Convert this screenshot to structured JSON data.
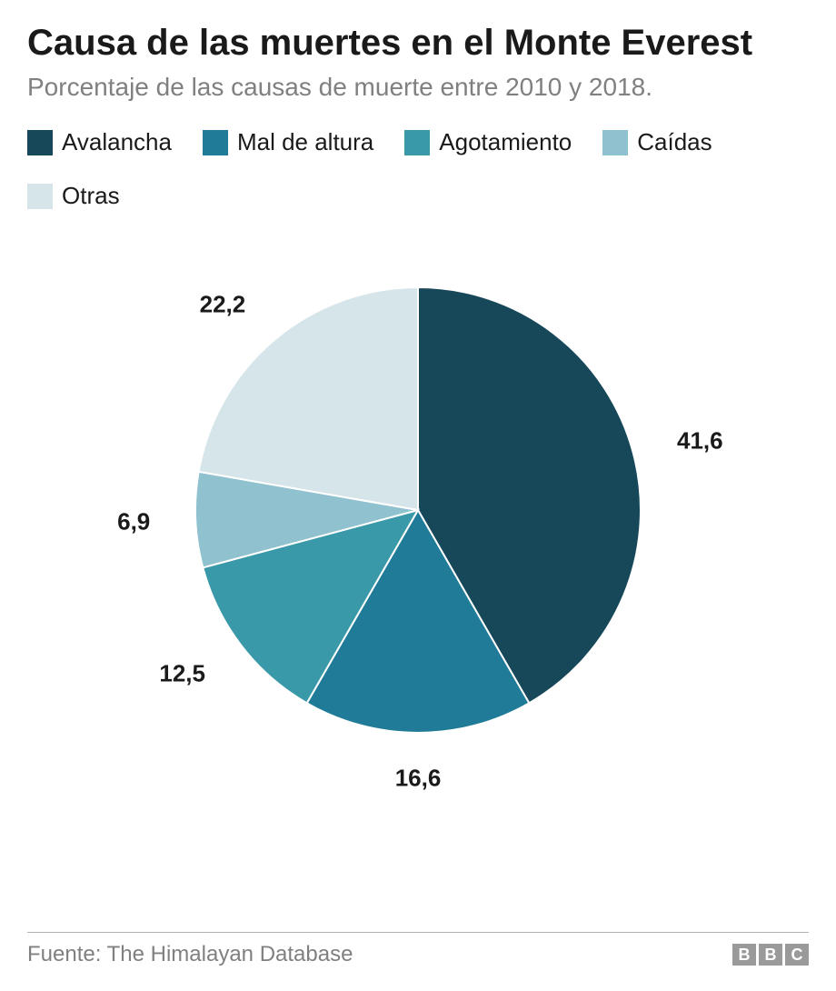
{
  "title": "Causa de las muertes en el Monte Everest",
  "subtitle": "Porcentaje de las causas de muerte entre 2010 y 2018.",
  "chart": {
    "type": "pie",
    "radius": 245,
    "center_offset_x": 0,
    "center_offset_y": 0,
    "start_angle_deg": 0,
    "slice_gap": 2,
    "background_color": "#ffffff",
    "label_fontsize": 26,
    "label_fontweight": "700",
    "label_color": "#1a1a1a",
    "decimal_separator": ",",
    "slices": [
      {
        "label": "Avalancha",
        "value": 41.6,
        "display": "41,6",
        "color": "#16485a"
      },
      {
        "label": "Mal de altura",
        "value": 16.6,
        "display": "16,6",
        "color": "#1f7b97"
      },
      {
        "label": "Agotamiento",
        "value": 12.5,
        "display": "12,5",
        "color": "#3a99a8"
      },
      {
        "label": "Caídas",
        "value": 6.9,
        "display": "6,9",
        "color": "#8fc1cf"
      },
      {
        "label": "Otras",
        "value": 22.2,
        "display": "22,2",
        "color": "#d6e5e9"
      }
    ]
  },
  "legend": {
    "swatch_size": 28,
    "fontsize": 26,
    "text_color": "#1a1a1a"
  },
  "source": "Fuente: The Himalayan Database",
  "logo": {
    "letters": [
      "B",
      "B",
      "C"
    ],
    "box_bg": "#9a9a9a",
    "box_fg": "#ffffff"
  }
}
